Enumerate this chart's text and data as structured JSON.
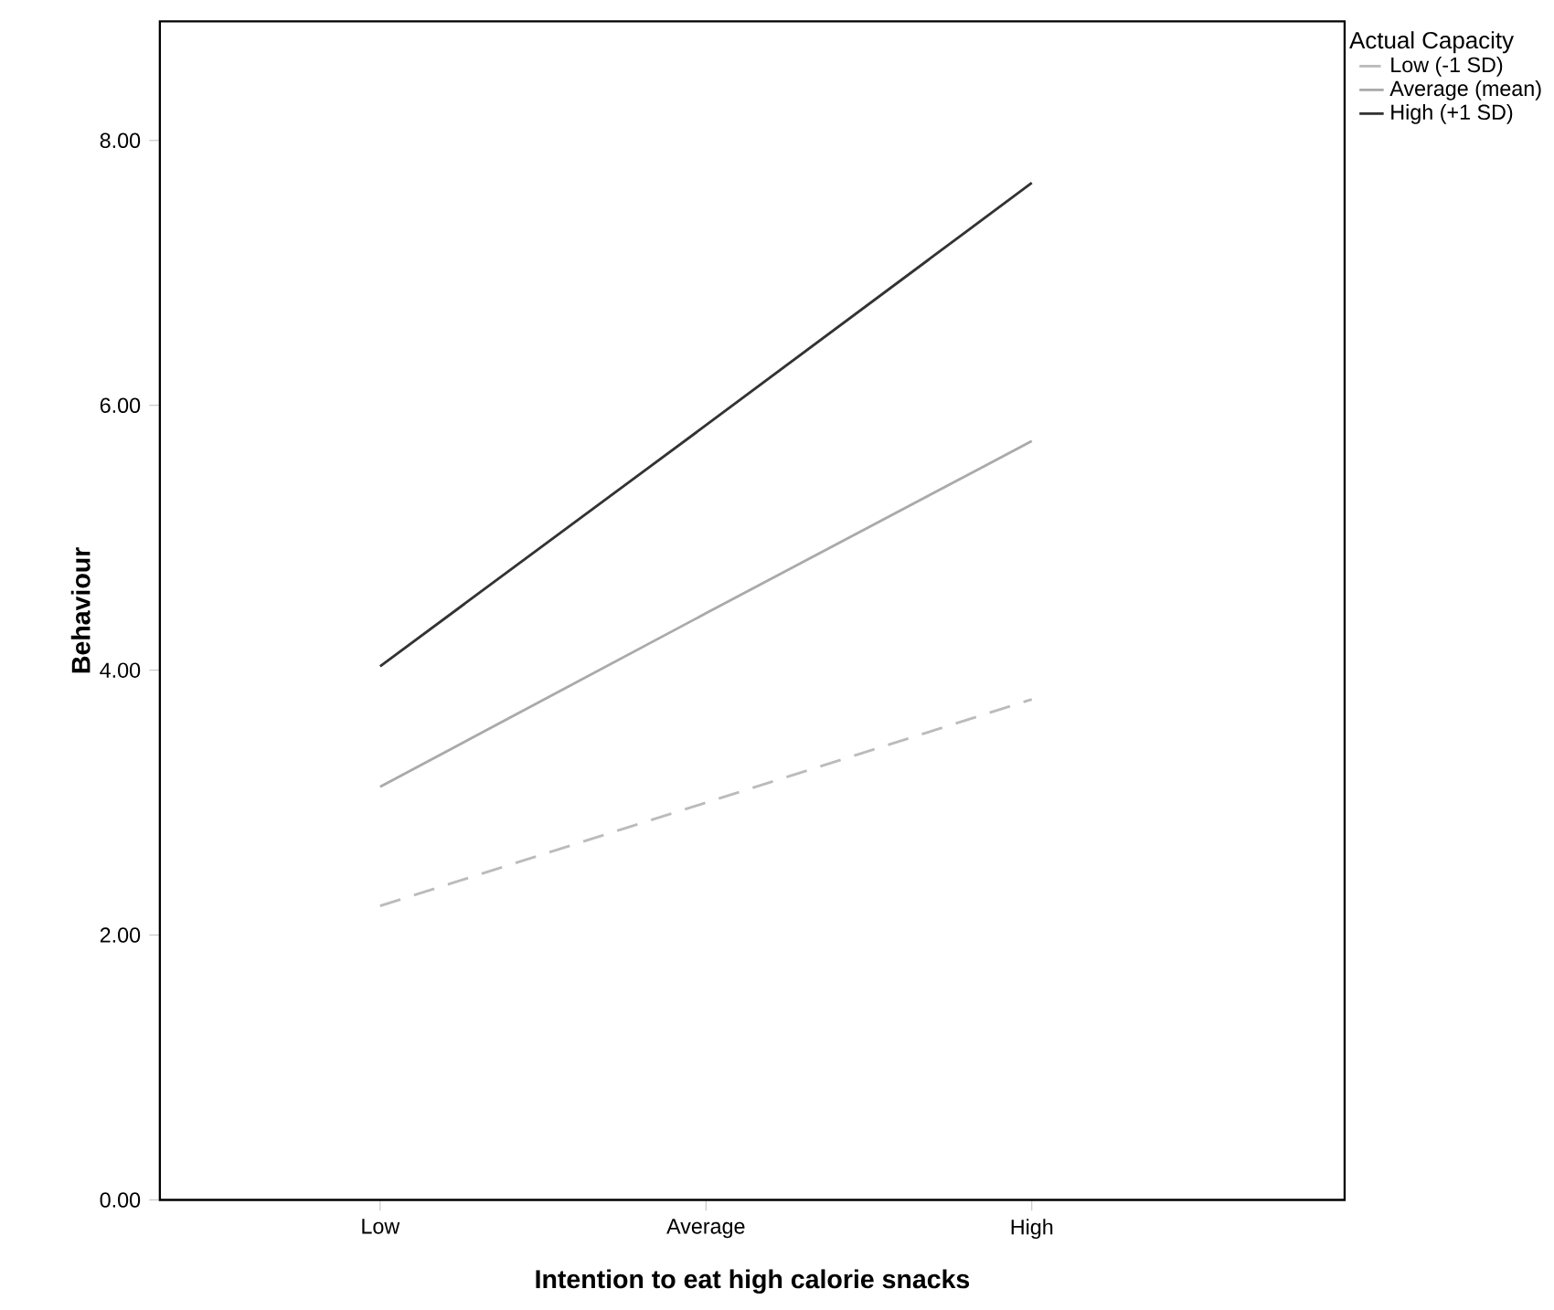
{
  "chart_data": {
    "type": "line",
    "xlabel": "Intention to eat high calorie snacks",
    "ylabel": "Behaviour",
    "legend_title": "Actual Capacity",
    "legend": "top right",
    "categories": [
      "Low",
      "Average",
      "High"
    ],
    "series": [
      {
        "name": "Low (-1 SD)",
        "color": "#bbbbbb",
        "line_style": "dashed",
        "values": [
          2.22,
          3.0,
          3.78
        ]
      },
      {
        "name": "Average (mean)",
        "color": "#aaaaaa",
        "line_style": "solid",
        "values": [
          3.12,
          4.43,
          5.73
        ]
      },
      {
        "name": "High (+1 SD)",
        "color": "#333333",
        "line_style": "solid",
        "values": [
          4.03,
          5.85,
          7.68
        ]
      }
    ],
    "ylim": [
      0,
      8.9
    ],
    "yticks": [
      {
        "value": 0,
        "label": "0.00"
      },
      {
        "value": 2,
        "label": "2.00"
      },
      {
        "value": 4,
        "label": "4.00"
      },
      {
        "value": 6,
        "label": "6.00"
      },
      {
        "value": 8,
        "label": "8.00"
      }
    ]
  }
}
